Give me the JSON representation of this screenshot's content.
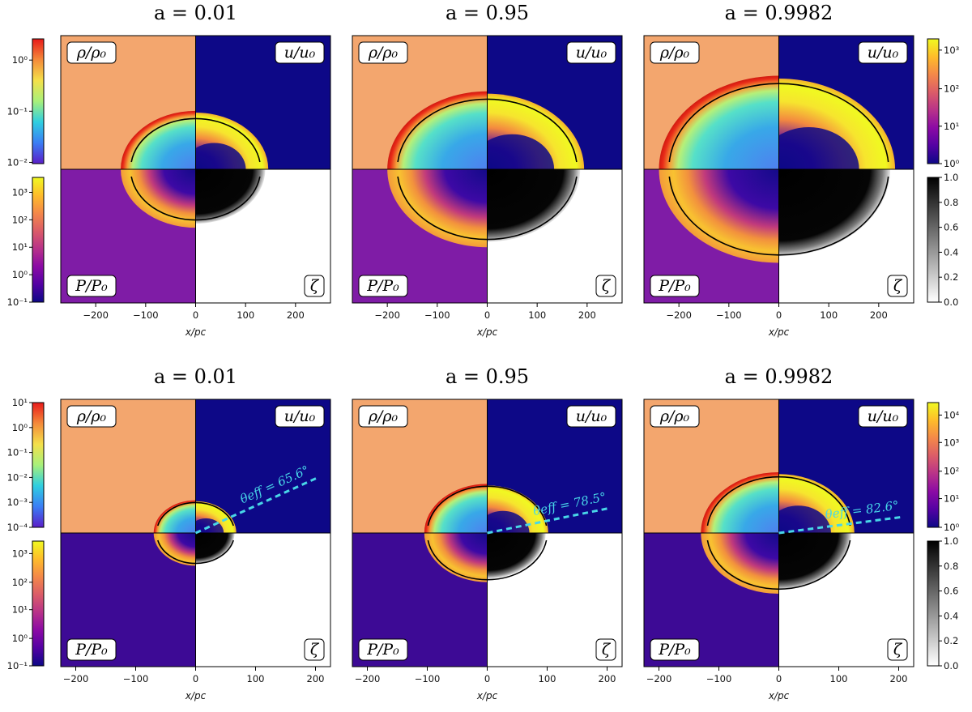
{
  "colors": {
    "rho_ambient": "#f3a66e",
    "u_ambient": "#0d0887",
    "p_ambient_top": "#7f1ca6",
    "p_ambient_bottom": "#3d0a95",
    "zeta_ambient": "#ffffff",
    "shock_line": "#000000",
    "annotation": "#48d6e8"
  },
  "colormaps": {
    "rho": [
      "#5a1ec8",
      "#3a7ef5",
      "#2fcfe0",
      "#a8f07a",
      "#f4e04a",
      "#f48a3a",
      "#e81a1a"
    ],
    "plasma": [
      "#0d0887",
      "#5302a3",
      "#8b0aa5",
      "#b83289",
      "#db5c68",
      "#f48849",
      "#febc2a",
      "#f0f921"
    ],
    "greys": [
      "#ffffff",
      "#000000"
    ]
  },
  "chart_data": [
    {
      "type": "heatmap",
      "title": "a = 0.01",
      "row": 1,
      "col": 1,
      "xlabel": "x/pc",
      "xlim": [
        -270,
        270
      ],
      "xticks": [
        "−200",
        "−100",
        "0",
        "100",
        "200"
      ],
      "quadrant_labels": [
        "ρ/ρ0",
        "u/u0",
        "P/P0",
        "ζ"
      ],
      "shock_radius_pc": 130,
      "bubble_radius_pc": 150
    },
    {
      "type": "heatmap",
      "title": "a = 0.95",
      "row": 1,
      "col": 2,
      "xlabel": "x/pc",
      "xlim": [
        -270,
        270
      ],
      "xticks": [
        "−200",
        "−100",
        "0",
        "100",
        "200"
      ],
      "quadrant_labels": [
        "ρ/ρ0",
        "u/u0",
        "P/P0",
        "ζ"
      ],
      "shock_radius_pc": 180,
      "bubble_radius_pc": 200
    },
    {
      "type": "heatmap",
      "title": "a = 0.9982",
      "row": 1,
      "col": 3,
      "xlabel": "x/pc",
      "xlim": [
        -270,
        270
      ],
      "xticks": [
        "−200",
        "−100",
        "0",
        "100",
        "200"
      ],
      "quadrant_labels": [
        "ρ/ρ0",
        "u/u0",
        "P/P0",
        "ζ"
      ],
      "shock_radius_pc": 220,
      "bubble_radius_pc": 240
    },
    {
      "type": "heatmap",
      "title": "a = 0.01",
      "row": 2,
      "col": 1,
      "xlabel": "x/pc",
      "xlim": [
        -225,
        225
      ],
      "xticks": [
        "−200",
        "−100",
        "0",
        "100",
        "200"
      ],
      "quadrant_labels": [
        "ρ/ρ0",
        "u/u0",
        "P/P0",
        "ζ"
      ],
      "shock_radius_pc": 65,
      "bubble_radius_pc": 70,
      "theta_eff_deg": 65.6,
      "theta_label": "θeff = 65.6°"
    },
    {
      "type": "heatmap",
      "title": "a = 0.95",
      "row": 2,
      "col": 2,
      "xlabel": "x/pc",
      "xlim": [
        -225,
        225
      ],
      "xticks": [
        "−200",
        "−100",
        "0",
        "100",
        "200"
      ],
      "quadrant_labels": [
        "ρ/ρ0",
        "u/u0",
        "P/P0",
        "ζ"
      ],
      "shock_radius_pc": 100,
      "bubble_radius_pc": 105,
      "theta_eff_deg": 78.5,
      "theta_label": "θeff = 78.5°"
    },
    {
      "type": "heatmap",
      "title": "a = 0.9982",
      "row": 2,
      "col": 3,
      "xlabel": "x/pc",
      "xlim": [
        -225,
        225
      ],
      "xticks": [
        "−200",
        "−100",
        "0",
        "100",
        "200"
      ],
      "quadrant_labels": [
        "ρ/ρ0",
        "u/u0",
        "P/P0",
        "ζ"
      ],
      "shock_radius_pc": 120,
      "bubble_radius_pc": 130,
      "theta_eff_deg": 82.6,
      "theta_label": "θeff = 82.6°"
    }
  ],
  "colorbars": [
    {
      "name": "rho-top",
      "cmap": "rho",
      "tick_labels": [
        "10⁰",
        "10⁻¹",
        "10⁻²"
      ],
      "tick_fracs": [
        0.17,
        0.58,
        0.99
      ]
    },
    {
      "name": "pressure-top",
      "cmap": "plasma",
      "tick_labels": [
        "10³",
        "10²",
        "10¹",
        "10⁰",
        "10⁻¹"
      ],
      "tick_fracs": [
        0.12,
        0.34,
        0.56,
        0.78,
        1.0
      ]
    },
    {
      "name": "velocity-top",
      "cmap": "plasma",
      "tick_labels": [
        "10³",
        "10²",
        "10¹",
        "10⁰"
      ],
      "tick_fracs": [
        0.09,
        0.4,
        0.7,
        1.0
      ]
    },
    {
      "name": "zeta-top",
      "cmap": "greys",
      "tick_labels": [
        "1.0",
        "0.8",
        "0.6",
        "0.4",
        "0.2",
        "0.0"
      ],
      "tick_fracs": [
        0.0,
        0.2,
        0.4,
        0.6,
        0.8,
        1.0
      ]
    },
    {
      "name": "rho-bottom",
      "cmap": "rho",
      "tick_labels": [
        "10¹",
        "10⁰",
        "10⁻¹",
        "10⁻²",
        "10⁻³",
        "10⁻⁴"
      ],
      "tick_fracs": [
        0.0,
        0.2,
        0.4,
        0.6,
        0.8,
        1.0
      ]
    },
    {
      "name": "pressure-bottom",
      "cmap": "plasma",
      "tick_labels": [
        "10³",
        "10²",
        "10¹",
        "10⁰",
        "10⁻¹"
      ],
      "tick_fracs": [
        0.1,
        0.33,
        0.55,
        0.78,
        1.0
      ]
    },
    {
      "name": "velocity-bottom",
      "cmap": "plasma",
      "tick_labels": [
        "10⁴",
        "10³",
        "10²",
        "10¹",
        "10⁰"
      ],
      "tick_fracs": [
        0.1,
        0.32,
        0.55,
        0.77,
        1.0
      ]
    },
    {
      "name": "zeta-bottom",
      "cmap": "greys",
      "tick_labels": [
        "1.0",
        "0.8",
        "0.6",
        "0.4",
        "0.2",
        "0.0"
      ],
      "tick_fracs": [
        0.0,
        0.2,
        0.4,
        0.6,
        0.8,
        1.0
      ]
    }
  ]
}
